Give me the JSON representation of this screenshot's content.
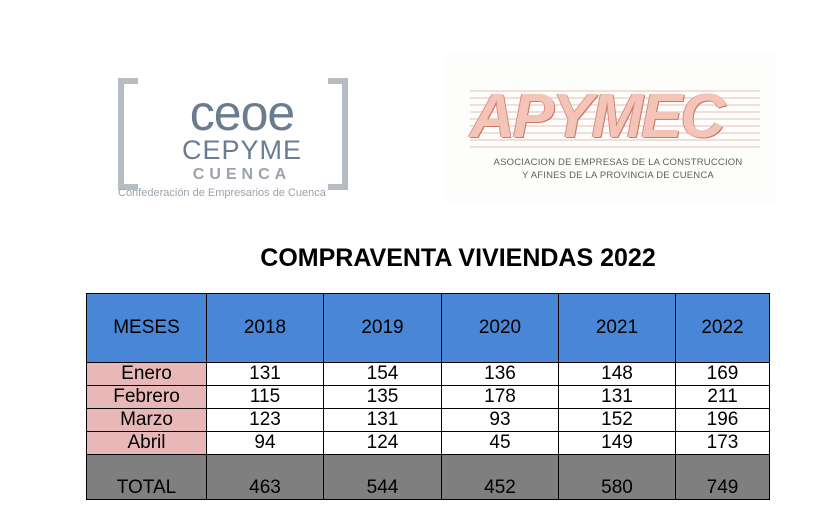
{
  "logos": {
    "ceoe": {
      "line1": "ceoe",
      "line2": "CEPYME",
      "line3": "CUENCA",
      "tagline": "Confederación de Empresarios de Cuenca"
    },
    "apymec": {
      "name": "APYMEC",
      "subtitle_line1": "ASOCIACION DE EMPRESAS DE LA CONSTRUCCION",
      "subtitle_line2": "Y AFINES DE LA PROVINCIA DE CUENCA"
    }
  },
  "title": "COMPRAVENTA VIVIENDAS 2022",
  "table": {
    "headers": [
      "MESES",
      "2018",
      "2019",
      "2020",
      "2021",
      "2022"
    ],
    "rows": [
      {
        "month": "Enero",
        "values": [
          "131",
          "154",
          "136",
          "148",
          "169"
        ]
      },
      {
        "month": "Febrero",
        "values": [
          "115",
          "135",
          "178",
          "131",
          "211"
        ]
      },
      {
        "month": "Marzo",
        "values": [
          "123",
          "131",
          "93",
          "152",
          "196"
        ]
      },
      {
        "month": "Abril",
        "values": [
          "94",
          "124",
          "45",
          "149",
          "173"
        ]
      }
    ],
    "total": {
      "label": "TOTAL",
      "values": [
        "463",
        "544",
        "452",
        "580",
        "749"
      ]
    }
  },
  "colors": {
    "header_bg": "#4a86d6",
    "month_bg": "#e8b7b7",
    "total_bg": "#7f7f7f"
  }
}
